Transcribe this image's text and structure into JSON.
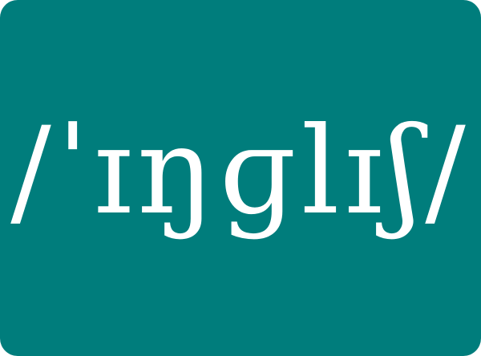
{
  "card": {
    "background_color": "#007d7c",
    "text_color": "#ffffff"
  },
  "transcription": "/ˈɪŋɡlɪʃ/"
}
